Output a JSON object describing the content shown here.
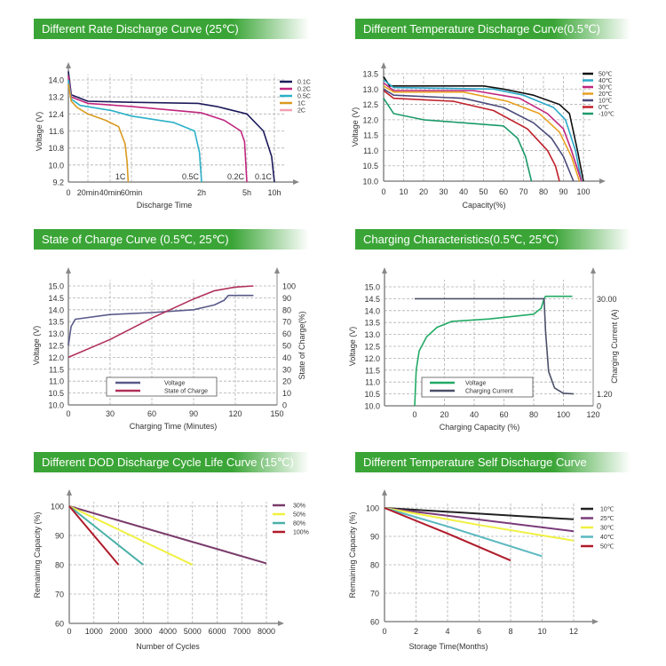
{
  "colors": {
    "banner": "#3aa536",
    "grid": "#b0b0b0",
    "axis": "#888888"
  },
  "chart_data": [
    {
      "type": "line",
      "title": "Different Rate Discharge Curve (25℃)",
      "xlabel": "Discharge Time",
      "ylabel": "Voltage (V)",
      "x_unit": "hours",
      "xticks": [
        {
          "v": 0,
          "label": "0"
        },
        {
          "v": 0.3333,
          "label": "20min"
        },
        {
          "v": 0.6667,
          "label": "40min"
        },
        {
          "v": 1,
          "label": "60min"
        },
        {
          "v": 2,
          "label": "2h"
        },
        {
          "v": 5,
          "label": "5h"
        },
        {
          "v": 10,
          "label": "10h"
        }
      ],
      "yticks": [
        "9.2",
        "10.0",
        "10.8",
        "11.6",
        "12.4",
        "13.2",
        "14.0"
      ],
      "ylim": [
        9.2,
        14.0
      ],
      "grid": true,
      "legend": "right",
      "annotations": [
        {
          "text": "1C",
          "x": 0.95
        },
        {
          "text": "0.5C",
          "x": 2
        },
        {
          "text": "0.2C",
          "x": 5
        },
        {
          "text": "0.1C",
          "x": 10
        }
      ],
      "series": [
        {
          "name": "0.1C",
          "color": "#1c1a5a",
          "points": [
            [
              0,
              14.4
            ],
            [
              0.05,
              13.3
            ],
            [
              0.33,
              13.0
            ],
            [
              1,
              12.95
            ],
            [
              1.95,
              12.9
            ],
            [
              3,
              12.75
            ],
            [
              5,
              12.4
            ],
            [
              8,
              11.6
            ],
            [
              9.5,
              10.4
            ],
            [
              10,
              9.2
            ]
          ]
        },
        {
          "name": "0.2C",
          "color": "#c0267e",
          "points": [
            [
              0,
              14.2
            ],
            [
              0.05,
              13.2
            ],
            [
              0.33,
              12.9
            ],
            [
              1,
              12.75
            ],
            [
              2,
              12.45
            ],
            [
              3.5,
              12.1
            ],
            [
              4.6,
              11.6
            ],
            [
              4.85,
              11.1
            ],
            [
              5,
              9.2
            ]
          ]
        },
        {
          "name": "0.5C",
          "color": "#2ab0c8",
          "points": [
            [
              0,
              14.0
            ],
            [
              0.05,
              13.1
            ],
            [
              0.2,
              12.8
            ],
            [
              0.7,
              12.55
            ],
            [
              1,
              12.3
            ],
            [
              1.6,
              12.0
            ],
            [
              1.9,
              11.6
            ],
            [
              1.97,
              10.6
            ],
            [
              2,
              9.2
            ]
          ]
        },
        {
          "name": "1C",
          "color": "#d99a20",
          "points": [
            [
              0,
              13.8
            ],
            [
              0.05,
              13.0
            ],
            [
              0.15,
              12.7
            ],
            [
              0.33,
              12.4
            ],
            [
              0.6,
              12.1
            ],
            [
              0.8,
              11.8
            ],
            [
              0.9,
              11.0
            ],
            [
              0.93,
              10.2
            ],
            [
              0.95,
              9.2
            ]
          ]
        },
        {
          "name": "2C",
          "color": "#f2a0b0",
          "points": []
        }
      ]
    },
    {
      "type": "line",
      "title": "Different Temperature Discharge Curve(0.5℃)",
      "xlabel": "Capacity(%)",
      "ylabel": "Voltage (V)",
      "xticks": [
        "0",
        "10",
        "20",
        "30",
        "40",
        "50",
        "60",
        "70",
        "80",
        "90",
        "100"
      ],
      "yticks": [
        "10.0",
        "10.5",
        "11.0",
        "11.5",
        "12.0",
        "12.5",
        "13.0",
        "13.5"
      ],
      "xlim": [
        0,
        100
      ],
      "ylim": [
        10.0,
        13.5
      ],
      "grid": true,
      "legend": "right",
      "series": [
        {
          "name": "50℃",
          "color": "#111111",
          "points": [
            [
              0,
              13.4
            ],
            [
              3,
              13.1
            ],
            [
              50,
              13.1
            ],
            [
              60,
              13.0
            ],
            [
              75,
              12.8
            ],
            [
              88,
              12.5
            ],
            [
              93,
              12.2
            ],
            [
              97,
              11.0
            ],
            [
              100,
              10.0
            ]
          ]
        },
        {
          "name": "40℃",
          "color": "#2aa8c8",
          "points": [
            [
              0,
              13.3
            ],
            [
              5,
              13.05
            ],
            [
              55,
              13.0
            ],
            [
              70,
              12.8
            ],
            [
              85,
              12.4
            ],
            [
              91,
              12.0
            ],
            [
              96,
              11.0
            ],
            [
              99,
              10.0
            ]
          ]
        },
        {
          "name": "30℃",
          "color": "#c0267e",
          "points": [
            [
              0,
              13.2
            ],
            [
              5,
              12.95
            ],
            [
              45,
              12.95
            ],
            [
              68,
              12.7
            ],
            [
              82,
              12.2
            ],
            [
              90,
              11.7
            ],
            [
              94,
              11.0
            ],
            [
              99,
              10.0
            ]
          ]
        },
        {
          "name": "20℃",
          "color": "#e8a020",
          "points": [
            [
              0,
              13.1
            ],
            [
              5,
              12.9
            ],
            [
              40,
              12.9
            ],
            [
              62,
              12.6
            ],
            [
              78,
              12.2
            ],
            [
              88,
              11.6
            ],
            [
              94,
              10.8
            ],
            [
              98,
              10.0
            ]
          ]
        },
        {
          "name": "10℃",
          "color": "#4a4a7a",
          "points": [
            [
              0,
              13.0
            ],
            [
              5,
              12.8
            ],
            [
              40,
              12.7
            ],
            [
              60,
              12.4
            ],
            [
              75,
              11.9
            ],
            [
              84,
              11.4
            ],
            [
              90,
              10.8
            ],
            [
              95,
              10.0
            ]
          ]
        },
        {
          "name": "0℃",
          "color": "#c0202a",
          "points": [
            [
              0,
              12.95
            ],
            [
              5,
              12.7
            ],
            [
              35,
              12.6
            ],
            [
              55,
              12.3
            ],
            [
              72,
              11.7
            ],
            [
              82,
              11.0
            ],
            [
              86,
              10.5
            ],
            [
              88,
              10.0
            ]
          ]
        },
        {
          "name": "-10℃",
          "color": "#1a9a6a",
          "points": [
            [
              0,
              12.7
            ],
            [
              5,
              12.2
            ],
            [
              20,
              12.0
            ],
            [
              40,
              11.9
            ],
            [
              60,
              11.8
            ],
            [
              67,
              11.4
            ],
            [
              71,
              10.8
            ],
            [
              74,
              10.0
            ]
          ]
        }
      ]
    },
    {
      "type": "line",
      "title": "State of Charge Curve (0.5℃, 25℃)",
      "xlabel": "Charging Time (Minutes)",
      "ylabel": "Voltage (V)",
      "y2label": "State of Charge(%)",
      "xticks": [
        "0",
        "30",
        "60",
        "90",
        "120",
        "150"
      ],
      "yticks": [
        "10.0",
        "10.5",
        "11.0",
        "11.5",
        "12.0",
        "12.5",
        "13.0",
        "13.5",
        "14.0",
        "14.5",
        "15.0"
      ],
      "y2ticks": [
        "0",
        "10",
        "20",
        "30",
        "40",
        "50",
        "60",
        "70",
        "80",
        "90",
        "100"
      ],
      "xlim": [
        0,
        150
      ],
      "ylim": [
        10,
        15
      ],
      "y2lim": [
        0,
        100
      ],
      "grid": true,
      "legend": "bottom-center",
      "series": [
        {
          "name": "Voltage",
          "color": "#5a5a8a",
          "axis": "left",
          "points": [
            [
              0,
              12.5
            ],
            [
              2,
              13.3
            ],
            [
              5,
              13.6
            ],
            [
              30,
              13.8
            ],
            [
              60,
              13.88
            ],
            [
              90,
              14.0
            ],
            [
              105,
              14.2
            ],
            [
              112,
              14.4
            ],
            [
              115,
              14.6
            ],
            [
              133,
              14.6
            ]
          ]
        },
        {
          "name": "State of Charge",
          "color": "#b0305a",
          "axis": "right",
          "points": [
            [
              0,
              40
            ],
            [
              30,
              55
            ],
            [
              60,
              73
            ],
            [
              90,
              89
            ],
            [
              105,
              96
            ],
            [
              120,
              99
            ],
            [
              133,
              100
            ]
          ]
        }
      ]
    },
    {
      "type": "line",
      "title": "Charging Characteristics(0.5℃, 25℃)",
      "xlabel": "Charging Capacity (%)",
      "ylabel": "Voltage (V)",
      "y2label": "Charging Current (A)",
      "xticks": [
        "0",
        "20",
        "40",
        "60",
        "80",
        "100",
        "120"
      ],
      "yticks": [
        "10.0",
        "10.5",
        "11.0",
        "11.5",
        "12.0",
        "12.5",
        "13.0",
        "13.5",
        "14.0",
        "14.5",
        "15.0"
      ],
      "y2ticks": [
        "0",
        "1.20",
        "30.00"
      ],
      "ylim": [
        10,
        15
      ],
      "grid": true,
      "legend": "bottom-center",
      "series": [
        {
          "name": "Voltage",
          "color": "#22aa66",
          "axis": "left",
          "points": [
            [
              0,
              10.0
            ],
            [
              1,
              11.5
            ],
            [
              3,
              12.3
            ],
            [
              8,
              12.9
            ],
            [
              15,
              13.3
            ],
            [
              25,
              13.55
            ],
            [
              50,
              13.65
            ],
            [
              80,
              13.85
            ],
            [
              85,
              14.1
            ],
            [
              87,
              14.5
            ],
            [
              88,
              14.6
            ],
            [
              106,
              14.6
            ]
          ]
        },
        {
          "name": "Charging Current",
          "color": "#4a5068",
          "axis": "right",
          "points": [
            [
              0,
              30
            ],
            [
              87,
              30
            ],
            [
              88,
              20
            ],
            [
              90,
              8
            ],
            [
              94,
              3
            ],
            [
              100,
              1.4
            ],
            [
              107,
              1.2
            ]
          ]
        }
      ]
    },
    {
      "type": "line",
      "title": "Different DOD Discharge Cycle Life Curve (15℃)",
      "xlabel": "Number of Cycles",
      "ylabel": "Remaining Capacity (%)",
      "xticks": [
        "0",
        "1000",
        "2000",
        "3000",
        "4000",
        "5000",
        "6000",
        "7000",
        "8000"
      ],
      "yticks": [
        "60",
        "70",
        "80",
        "90",
        "100"
      ],
      "xlim": [
        0,
        8000
      ],
      "ylim": [
        60,
        100
      ],
      "grid": true,
      "legend": "right",
      "series": [
        {
          "name": "30%",
          "color": "#7a3a6a",
          "points": [
            [
              0,
              100
            ],
            [
              8000,
              80.5
            ]
          ]
        },
        {
          "name": "50%",
          "color": "#f0f040",
          "points": [
            [
              0,
              100
            ],
            [
              5000,
              80
            ]
          ]
        },
        {
          "name": "80%",
          "color": "#4ab0a8",
          "points": [
            [
              0,
              100
            ],
            [
              3000,
              80
            ]
          ]
        },
        {
          "name": "100%",
          "color": "#b01a2a",
          "points": [
            [
              0,
              100
            ],
            [
              2000,
              80
            ]
          ]
        }
      ]
    },
    {
      "type": "line",
      "title": "Different Temperature Self Discharge Curve",
      "xlabel": "Storage Time(Months)",
      "ylabel": "Remaining Capacity (%)",
      "xticks": [
        "0",
        "2",
        "4",
        "6",
        "8",
        "10",
        "12"
      ],
      "yticks": [
        "60",
        "70",
        "80",
        "90",
        "100"
      ],
      "xlim": [
        0,
        12
      ],
      "ylim": [
        60,
        100
      ],
      "grid": true,
      "legend": "right",
      "series": [
        {
          "name": "10℃",
          "color": "#222222",
          "points": [
            [
              0,
              100
            ],
            [
              12,
              96
            ]
          ]
        },
        {
          "name": "25℃",
          "color": "#7a3a7a",
          "points": [
            [
              0,
              100
            ],
            [
              12,
              91.8
            ]
          ]
        },
        {
          "name": "30℃",
          "color": "#f0f040",
          "points": [
            [
              0,
              100
            ],
            [
              6,
              94
            ],
            [
              12,
              88.5
            ]
          ]
        },
        {
          "name": "40℃",
          "color": "#5ab8c0",
          "points": [
            [
              0,
              100
            ],
            [
              4,
              93.5
            ],
            [
              10,
              83
            ]
          ]
        },
        {
          "name": "50℃",
          "color": "#b01a2a",
          "points": [
            [
              0,
              100
            ],
            [
              4,
              91
            ],
            [
              8,
              81.5
            ]
          ]
        }
      ]
    }
  ]
}
